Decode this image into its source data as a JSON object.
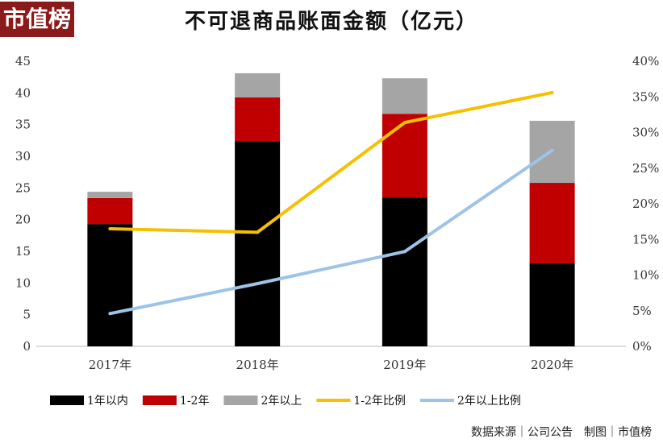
{
  "logo": "市值榜",
  "chart_data": {
    "type": "bar",
    "title": "不可退商品账面金额（亿元）",
    "categories": [
      "2017年",
      "2018年",
      "2019年",
      "2020年"
    ],
    "series": [
      {
        "name": "1年以内",
        "kind": "stacked-bar",
        "axis": "left",
        "color": "#000000",
        "values": [
          19.3,
          32.4,
          23.5,
          13.1
        ]
      },
      {
        "name": "1-2年",
        "kind": "stacked-bar",
        "axis": "left",
        "color": "#c00000",
        "values": [
          4.1,
          6.9,
          13.2,
          12.7
        ]
      },
      {
        "name": "2年以上",
        "kind": "stacked-bar",
        "axis": "left",
        "color": "#a5a5a5",
        "values": [
          1.0,
          3.8,
          5.6,
          9.8
        ]
      },
      {
        "name": "1-2年比例",
        "kind": "line",
        "axis": "right",
        "color": "#f5c000",
        "values": [
          16.5,
          16.0,
          31.4,
          35.6
        ]
      },
      {
        "name": "2年以上比例",
        "kind": "line",
        "axis": "right",
        "color": "#9dc3e6",
        "values": [
          4.6,
          8.8,
          13.3,
          27.5
        ]
      }
    ],
    "yleft": {
      "ylim": [
        0,
        45
      ],
      "ticks": [
        "0",
        "5",
        "10",
        "15",
        "20",
        "25",
        "30",
        "35",
        "40",
        "45"
      ]
    },
    "yright": {
      "ylim": [
        0,
        40
      ],
      "ticks": [
        "0%",
        "5%",
        "10%",
        "15%",
        "20%",
        "25%",
        "30%",
        "35%",
        "40%"
      ]
    },
    "grid": false,
    "legend": "bottom"
  },
  "source": "数据来源｜公司公告　制图｜市值榜"
}
